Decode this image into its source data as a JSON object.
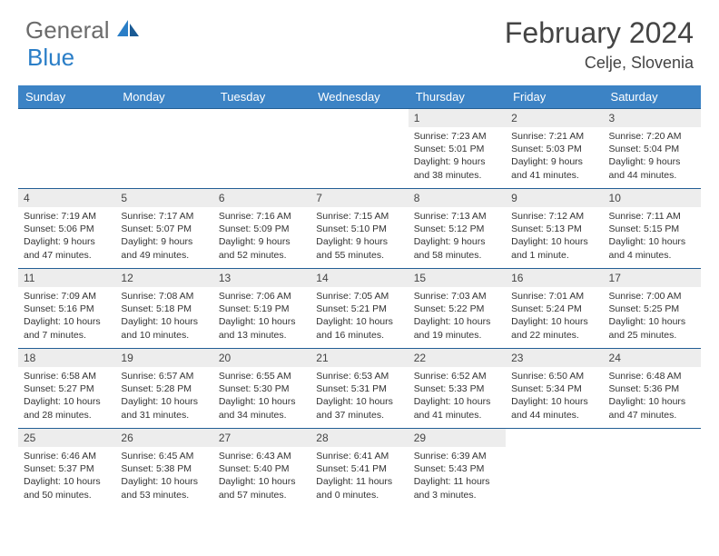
{
  "brand": {
    "part1": "General",
    "part2": "Blue"
  },
  "title": "February 2024",
  "location": "Celje, Slovenia",
  "colors": {
    "header_bg": "#3c83c5",
    "divider": "#235f95",
    "daynum_bg": "#ededed",
    "text": "#333333",
    "brand_gray": "#6b6b6b",
    "brand_blue": "#2a7ec7"
  },
  "weekdays": [
    "Sunday",
    "Monday",
    "Tuesday",
    "Wednesday",
    "Thursday",
    "Friday",
    "Saturday"
  ],
  "weeks": [
    [
      null,
      null,
      null,
      null,
      {
        "n": "1",
        "sr": "7:23 AM",
        "ss": "5:01 PM",
        "dl": "9 hours and 38 minutes."
      },
      {
        "n": "2",
        "sr": "7:21 AM",
        "ss": "5:03 PM",
        "dl": "9 hours and 41 minutes."
      },
      {
        "n": "3",
        "sr": "7:20 AM",
        "ss": "5:04 PM",
        "dl": "9 hours and 44 minutes."
      }
    ],
    [
      {
        "n": "4",
        "sr": "7:19 AM",
        "ss": "5:06 PM",
        "dl": "9 hours and 47 minutes."
      },
      {
        "n": "5",
        "sr": "7:17 AM",
        "ss": "5:07 PM",
        "dl": "9 hours and 49 minutes."
      },
      {
        "n": "6",
        "sr": "7:16 AM",
        "ss": "5:09 PM",
        "dl": "9 hours and 52 minutes."
      },
      {
        "n": "7",
        "sr": "7:15 AM",
        "ss": "5:10 PM",
        "dl": "9 hours and 55 minutes."
      },
      {
        "n": "8",
        "sr": "7:13 AM",
        "ss": "5:12 PM",
        "dl": "9 hours and 58 minutes."
      },
      {
        "n": "9",
        "sr": "7:12 AM",
        "ss": "5:13 PM",
        "dl": "10 hours and 1 minute."
      },
      {
        "n": "10",
        "sr": "7:11 AM",
        "ss": "5:15 PM",
        "dl": "10 hours and 4 minutes."
      }
    ],
    [
      {
        "n": "11",
        "sr": "7:09 AM",
        "ss": "5:16 PM",
        "dl": "10 hours and 7 minutes."
      },
      {
        "n": "12",
        "sr": "7:08 AM",
        "ss": "5:18 PM",
        "dl": "10 hours and 10 minutes."
      },
      {
        "n": "13",
        "sr": "7:06 AM",
        "ss": "5:19 PM",
        "dl": "10 hours and 13 minutes."
      },
      {
        "n": "14",
        "sr": "7:05 AM",
        "ss": "5:21 PM",
        "dl": "10 hours and 16 minutes."
      },
      {
        "n": "15",
        "sr": "7:03 AM",
        "ss": "5:22 PM",
        "dl": "10 hours and 19 minutes."
      },
      {
        "n": "16",
        "sr": "7:01 AM",
        "ss": "5:24 PM",
        "dl": "10 hours and 22 minutes."
      },
      {
        "n": "17",
        "sr": "7:00 AM",
        "ss": "5:25 PM",
        "dl": "10 hours and 25 minutes."
      }
    ],
    [
      {
        "n": "18",
        "sr": "6:58 AM",
        "ss": "5:27 PM",
        "dl": "10 hours and 28 minutes."
      },
      {
        "n": "19",
        "sr": "6:57 AM",
        "ss": "5:28 PM",
        "dl": "10 hours and 31 minutes."
      },
      {
        "n": "20",
        "sr": "6:55 AM",
        "ss": "5:30 PM",
        "dl": "10 hours and 34 minutes."
      },
      {
        "n": "21",
        "sr": "6:53 AM",
        "ss": "5:31 PM",
        "dl": "10 hours and 37 minutes."
      },
      {
        "n": "22",
        "sr": "6:52 AM",
        "ss": "5:33 PM",
        "dl": "10 hours and 41 minutes."
      },
      {
        "n": "23",
        "sr": "6:50 AM",
        "ss": "5:34 PM",
        "dl": "10 hours and 44 minutes."
      },
      {
        "n": "24",
        "sr": "6:48 AM",
        "ss": "5:36 PM",
        "dl": "10 hours and 47 minutes."
      }
    ],
    [
      {
        "n": "25",
        "sr": "6:46 AM",
        "ss": "5:37 PM",
        "dl": "10 hours and 50 minutes."
      },
      {
        "n": "26",
        "sr": "6:45 AM",
        "ss": "5:38 PM",
        "dl": "10 hours and 53 minutes."
      },
      {
        "n": "27",
        "sr": "6:43 AM",
        "ss": "5:40 PM",
        "dl": "10 hours and 57 minutes."
      },
      {
        "n": "28",
        "sr": "6:41 AM",
        "ss": "5:41 PM",
        "dl": "11 hours and 0 minutes."
      },
      {
        "n": "29",
        "sr": "6:39 AM",
        "ss": "5:43 PM",
        "dl": "11 hours and 3 minutes."
      },
      null,
      null
    ]
  ],
  "labels": {
    "sunrise": "Sunrise:",
    "sunset": "Sunset:",
    "daylight": "Daylight:"
  }
}
